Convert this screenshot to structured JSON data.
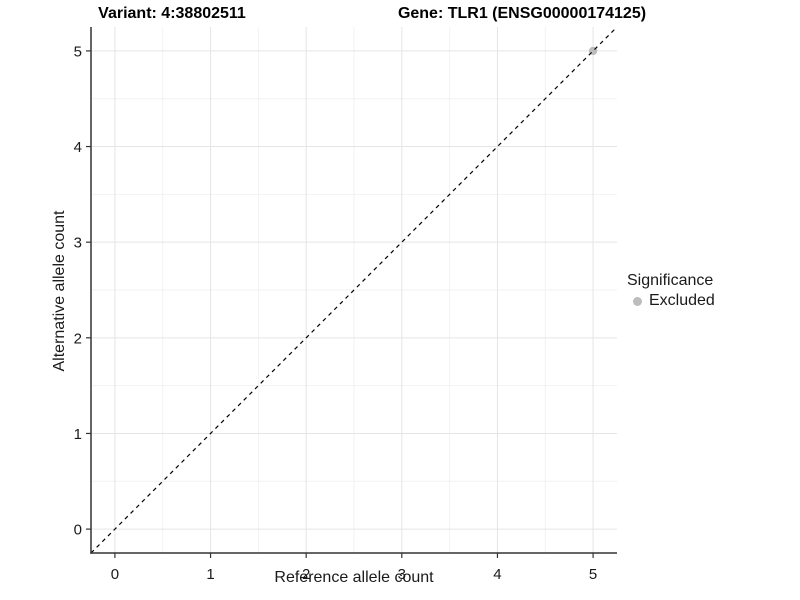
{
  "chart_data": {
    "type": "scatter",
    "title_left": "Variant: 4:38802511",
    "title_right": "Gene: TLR1 (ENSG00000174125)",
    "xlabel": "Reference allele count",
    "ylabel": "Alternative allele count",
    "xlim": [
      -0.25,
      5.25
    ],
    "ylim": [
      -0.25,
      5.25
    ],
    "xticks": [
      0,
      1,
      2,
      3,
      4,
      5
    ],
    "yticks": [
      0,
      1,
      2,
      3,
      4,
      5
    ],
    "xminor": [
      0.5,
      1.5,
      2.5,
      3.5,
      4.5
    ],
    "yminor": [
      0.5,
      1.5,
      2.5,
      3.5,
      4.5
    ],
    "grid": {
      "visible": true,
      "major_color": "#e5e5e5",
      "minor_color": "#f2f2f2"
    },
    "abline": {
      "from": [
        -0.25,
        -0.25
      ],
      "to": [
        5.25,
        5.25
      ],
      "linetype": "dashed",
      "color": "#000000"
    },
    "series": [
      {
        "name": "Excluded",
        "color": "#bdbdbd",
        "points": [
          [
            5,
            5
          ]
        ]
      }
    ],
    "legend": {
      "title": "Significance",
      "position": "right",
      "entries": [
        {
          "label": "Excluded",
          "color": "#bdbdbd",
          "marker": "circle"
        }
      ]
    },
    "axis_color": "#333333",
    "tick_label_color": "#1a1a1a"
  }
}
